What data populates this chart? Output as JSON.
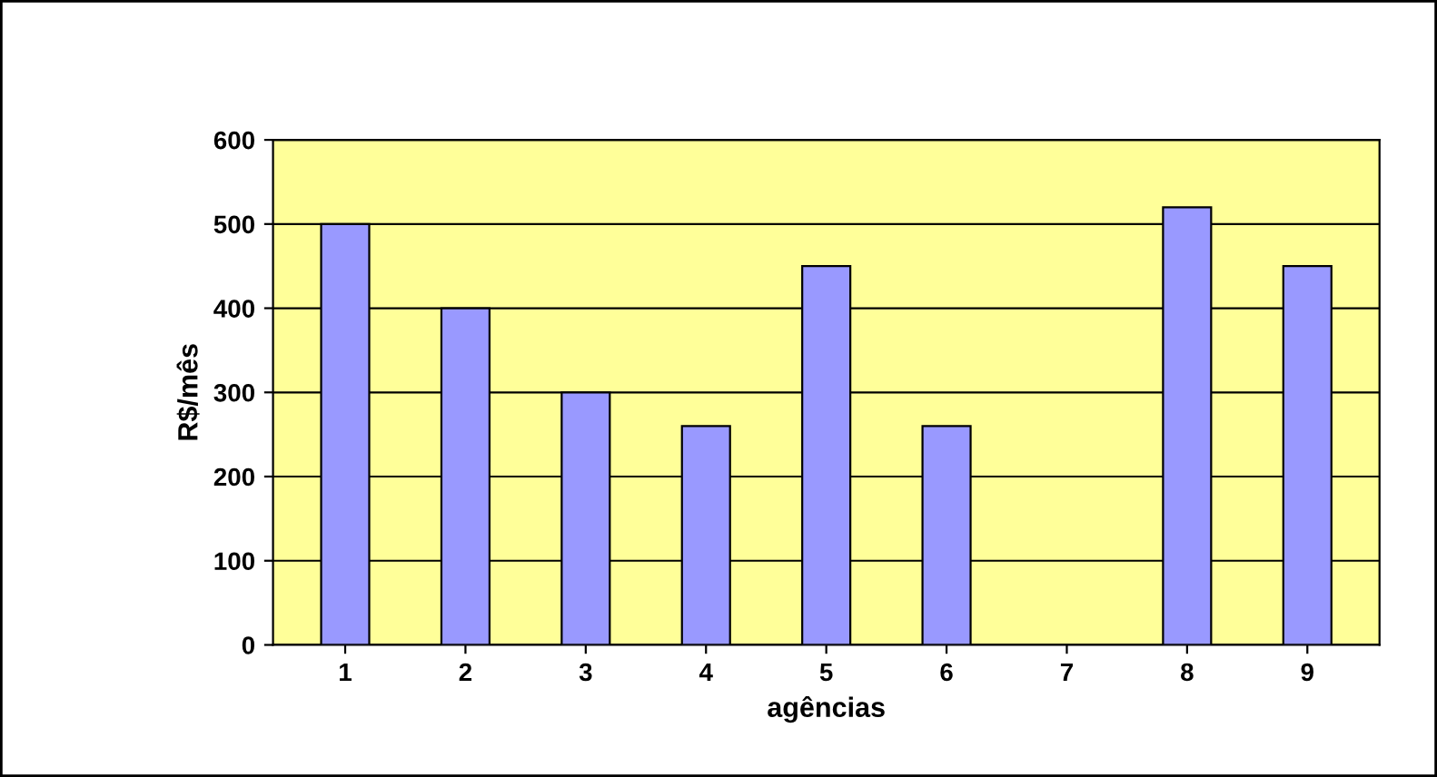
{
  "chart_data": {
    "type": "bar",
    "xlabel": "agências",
    "ylabel": "R$/mês",
    "categories": [
      "1",
      "2",
      "3",
      "4",
      "5",
      "6",
      "7",
      "8",
      "9"
    ],
    "values": [
      500,
      400,
      300,
      260,
      450,
      260,
      null,
      520,
      450
    ],
    "color": "#9999ff",
    "ylim": [
      0,
      600
    ],
    "yticks": [
      0,
      100,
      200,
      300,
      400,
      500,
      600
    ],
    "grid": "y",
    "legend": false
  }
}
